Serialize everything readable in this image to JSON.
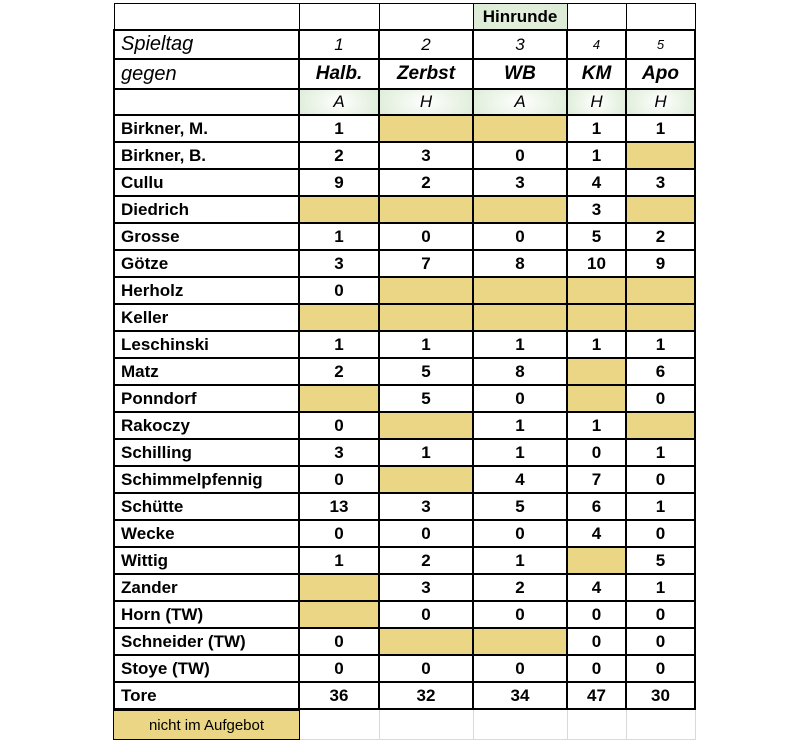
{
  "table": {
    "hinrunde_label": "Hinrunde",
    "spieltag_label": "Spieltag",
    "gegen_label": "gegen",
    "matchdays": [
      "1",
      "2",
      "3",
      "4",
      "5"
    ],
    "opponents": [
      "Halb.",
      "Zerbst",
      "WB",
      "KM",
      "Apo"
    ],
    "venues": [
      "A",
      "H",
      "A",
      "H",
      "H"
    ],
    "players": [
      {
        "name": "Birkner, M.",
        "values": [
          "1",
          null,
          null,
          "1",
          "1"
        ]
      },
      {
        "name": "Birkner, B.",
        "values": [
          "2",
          "3",
          "0",
          "1",
          null
        ]
      },
      {
        "name": "Cullu",
        "values": [
          "9",
          "2",
          "3",
          "4",
          "3"
        ]
      },
      {
        "name": "Diedrich",
        "values": [
          null,
          null,
          null,
          "3",
          null
        ]
      },
      {
        "name": "Grosse",
        "values": [
          "1",
          "0",
          "0",
          "5",
          "2"
        ]
      },
      {
        "name": "Götze",
        "values": [
          "3",
          "7",
          "8",
          "10",
          "9"
        ]
      },
      {
        "name": "Herholz",
        "values": [
          "0",
          null,
          null,
          null,
          null
        ]
      },
      {
        "name": "Keller",
        "values": [
          null,
          null,
          null,
          null,
          null
        ]
      },
      {
        "name": "Leschinski",
        "values": [
          "1",
          "1",
          "1",
          "1",
          "1"
        ]
      },
      {
        "name": "Matz",
        "values": [
          "2",
          "5",
          "8",
          null,
          "6"
        ]
      },
      {
        "name": "Ponndorf",
        "values": [
          null,
          "5",
          "0",
          null,
          "0"
        ]
      },
      {
        "name": "Rakoczy",
        "values": [
          "0",
          null,
          "1",
          "1",
          null
        ]
      },
      {
        "name": "Schilling",
        "values": [
          "3",
          "1",
          "1",
          "0",
          "1"
        ]
      },
      {
        "name": "Schimmelpfennig",
        "values": [
          "0",
          null,
          "4",
          "7",
          "0"
        ]
      },
      {
        "name": "Schütte",
        "values": [
          "13",
          "3",
          "5",
          "6",
          "1"
        ]
      },
      {
        "name": "Wecke",
        "values": [
          "0",
          "0",
          "0",
          "4",
          "0"
        ]
      },
      {
        "name": "Wittig",
        "values": [
          "1",
          "2",
          "1",
          null,
          "5"
        ]
      },
      {
        "name": "Zander",
        "values": [
          null,
          "3",
          "2",
          "4",
          "1"
        ]
      },
      {
        "name": "Horn (TW)",
        "values": [
          null,
          "0",
          "0",
          "0",
          "0"
        ]
      },
      {
        "name": "Schneider (TW)",
        "values": [
          "0",
          null,
          null,
          "0",
          "0"
        ]
      },
      {
        "name": "Stoye (TW)",
        "values": [
          "0",
          "0",
          "0",
          "0",
          "0"
        ]
      }
    ],
    "total_row": {
      "name": "Tore",
      "values": [
        "36",
        "32",
        "34",
        "47",
        "30"
      ]
    }
  },
  "legend": {
    "label": "nicht im Aufgebot"
  },
  "colors": {
    "not_in_squad_fill": "#ead685",
    "header_green": "#d9ead3",
    "border": "#000000",
    "gridline_grey": "#d9d9d9"
  }
}
